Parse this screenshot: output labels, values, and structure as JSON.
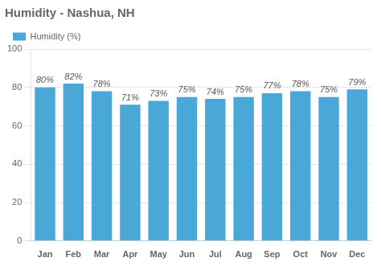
{
  "chart_data": {
    "type": "bar",
    "title": "Humidity - Nashua, NH",
    "categories": [
      "Jan",
      "Feb",
      "Mar",
      "Apr",
      "May",
      "Jun",
      "Jul",
      "Aug",
      "Sep",
      "Oct",
      "Nov",
      "Dec"
    ],
    "series": [
      {
        "name": "Humidity (%)",
        "color": "#4aa8d8",
        "values": [
          80,
          82,
          78,
          71,
          73,
          75,
          74,
          75,
          77,
          78,
          75,
          79
        ],
        "value_labels": [
          "80%",
          "82%",
          "78%",
          "71%",
          "73%",
          "75%",
          "74%",
          "75%",
          "77%",
          "78%",
          "75%",
          "79%"
        ]
      }
    ],
    "ylim": [
      0,
      100
    ],
    "yticks": [
      0,
      20,
      40,
      60,
      80,
      100
    ],
    "grid": true,
    "legend": "top",
    "data_labels": true
  }
}
